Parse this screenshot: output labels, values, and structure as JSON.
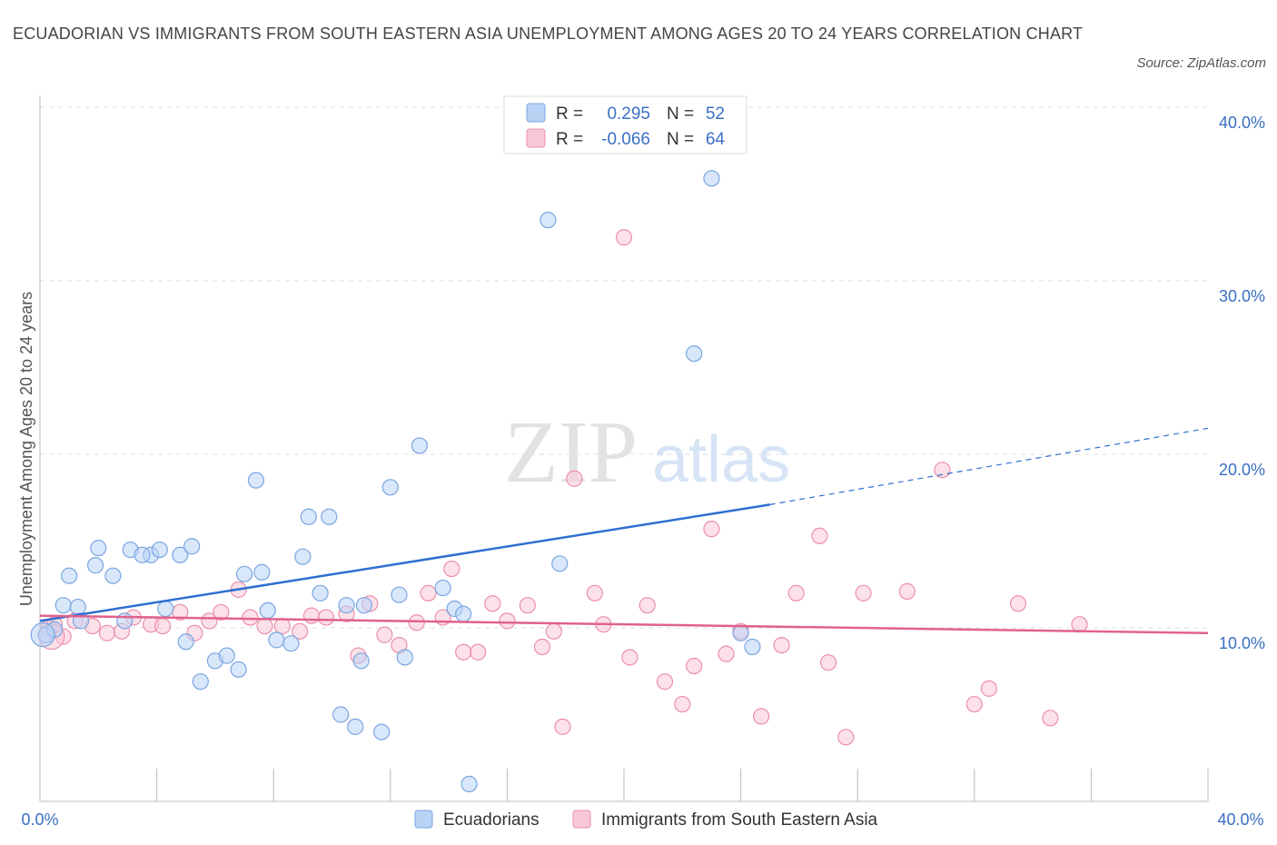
{
  "title": "ECUADORIAN VS IMMIGRANTS FROM SOUTH EASTERN ASIA UNEMPLOYMENT AMONG AGES 20 TO 24 YEARS CORRELATION CHART",
  "source": "Source: ZipAtlas.com",
  "watermark": {
    "zip": "ZIP",
    "atlas": "atlas"
  },
  "legend_top": {
    "rows": [
      {
        "r_label": "R =",
        "r_value": "0.295",
        "n_label": "N =",
        "n_value": "52"
      },
      {
        "r_label": "R =",
        "r_value": "-0.066",
        "n_label": "N =",
        "n_value": "64"
      }
    ]
  },
  "legend_bottom": [
    "Ecuadorians",
    "Immigrants from South Eastern Asia"
  ],
  "colors": {
    "blue_fill": "#b9d3f5",
    "blue_stroke": "#7aa6e0",
    "blue_line": "#2f6fd0",
    "pink_fill": "#f9c8d6",
    "pink_stroke": "#eb8fab",
    "pink_line": "#e0628c",
    "tick": "#3a6fc4",
    "grid": "#dddddd"
  },
  "chart_data": {
    "type": "scatter",
    "title": "ECUADORIAN VS IMMIGRANTS FROM SOUTH EASTERN ASIA UNEMPLOYMENT AMONG AGES 20 TO 24 YEARS CORRELATION CHART",
    "xlabel": "",
    "ylabel": "Unemployment Among Ages 20 to 24 years",
    "xlim": [
      0,
      40
    ],
    "ylim": [
      0,
      40
    ],
    "x_tick_labels": [
      "0.0%",
      "40.0%"
    ],
    "y_ticks": [
      10,
      20,
      30,
      40
    ],
    "y_tick_labels": [
      "10.0%",
      "20.0%",
      "30.0%",
      "40.0%"
    ],
    "grid": true,
    "legend_position": "top-center",
    "series": [
      {
        "name": "Ecuadorians",
        "R": 0.295,
        "N": 52,
        "trend": {
          "x0": 0,
          "y0": 10.4,
          "x1": 25,
          "y1": 17.1,
          "dashed_to_x": 40,
          "dashed_to_y": 21.5
        },
        "points": [
          [
            0.2,
            9.6
          ],
          [
            0.5,
            9.9
          ],
          [
            0.8,
            11.3
          ],
          [
            1.3,
            11.2
          ],
          [
            1.0,
            13.0
          ],
          [
            1.4,
            10.4
          ],
          [
            2.0,
            14.6
          ],
          [
            1.9,
            13.6
          ],
          [
            2.5,
            13.0
          ],
          [
            3.1,
            14.5
          ],
          [
            3.8,
            14.2
          ],
          [
            3.5,
            14.2
          ],
          [
            4.1,
            14.5
          ],
          [
            4.8,
            14.2
          ],
          [
            5.2,
            14.7
          ],
          [
            4.3,
            11.1
          ],
          [
            2.9,
            10.4
          ],
          [
            5.0,
            9.2
          ],
          [
            5.5,
            6.9
          ],
          [
            6.0,
            8.1
          ],
          [
            6.4,
            8.4
          ],
          [
            6.8,
            7.6
          ],
          [
            7.0,
            13.1
          ],
          [
            7.4,
            18.5
          ],
          [
            7.6,
            13.2
          ],
          [
            7.8,
            11.0
          ],
          [
            8.1,
            9.3
          ],
          [
            8.6,
            9.1
          ],
          [
            9.0,
            14.1
          ],
          [
            9.2,
            16.4
          ],
          [
            9.6,
            12.0
          ],
          [
            9.9,
            16.4
          ],
          [
            10.3,
            5.0
          ],
          [
            10.8,
            4.3
          ],
          [
            10.5,
            11.3
          ],
          [
            11.1,
            11.3
          ],
          [
            11.0,
            8.1
          ],
          [
            12.0,
            18.1
          ],
          [
            11.7,
            4.0
          ],
          [
            12.3,
            11.9
          ],
          [
            12.5,
            8.3
          ],
          [
            13.0,
            20.5
          ],
          [
            13.8,
            12.3
          ],
          [
            14.2,
            11.1
          ],
          [
            14.5,
            10.8
          ],
          [
            14.7,
            1.0
          ],
          [
            17.4,
            33.5
          ],
          [
            17.8,
            13.7
          ],
          [
            22.4,
            25.8
          ],
          [
            23.0,
            35.9
          ],
          [
            24.0,
            9.7
          ],
          [
            24.4,
            8.9
          ]
        ]
      },
      {
        "name": "Immigrants from South Eastern Asia",
        "R": -0.066,
        "N": 64,
        "trend": {
          "x0": 0,
          "y0": 10.7,
          "x1": 40,
          "y1": 9.7
        },
        "points": [
          [
            0.3,
            10.0
          ],
          [
            0.5,
            10.2
          ],
          [
            0.8,
            9.5
          ],
          [
            1.2,
            10.4
          ],
          [
            1.8,
            10.1
          ],
          [
            2.3,
            9.7
          ],
          [
            2.8,
            9.8
          ],
          [
            3.2,
            10.6
          ],
          [
            3.8,
            10.2
          ],
          [
            4.2,
            10.1
          ],
          [
            4.8,
            10.9
          ],
          [
            5.3,
            9.7
          ],
          [
            5.8,
            10.4
          ],
          [
            6.2,
            10.9
          ],
          [
            6.8,
            12.2
          ],
          [
            7.2,
            10.6
          ],
          [
            7.7,
            10.1
          ],
          [
            8.3,
            10.1
          ],
          [
            8.9,
            9.8
          ],
          [
            9.3,
            10.7
          ],
          [
            9.8,
            10.6
          ],
          [
            10.5,
            10.8
          ],
          [
            10.9,
            8.4
          ],
          [
            11.3,
            11.4
          ],
          [
            11.8,
            9.6
          ],
          [
            12.3,
            9.0
          ],
          [
            12.9,
            10.3
          ],
          [
            13.3,
            12.0
          ],
          [
            13.8,
            10.6
          ],
          [
            14.1,
            13.4
          ],
          [
            14.5,
            8.6
          ],
          [
            15.0,
            8.6
          ],
          [
            15.5,
            11.4
          ],
          [
            16.0,
            10.4
          ],
          [
            16.7,
            11.3
          ],
          [
            17.2,
            8.9
          ],
          [
            17.6,
            9.8
          ],
          [
            17.9,
            4.3
          ],
          [
            18.3,
            18.6
          ],
          [
            19.0,
            12.0
          ],
          [
            19.3,
            10.2
          ],
          [
            20.0,
            32.5
          ],
          [
            20.2,
            8.3
          ],
          [
            20.8,
            11.3
          ],
          [
            21.4,
            6.9
          ],
          [
            22.0,
            5.6
          ],
          [
            22.4,
            7.8
          ],
          [
            23.0,
            15.7
          ],
          [
            23.5,
            8.5
          ],
          [
            24.0,
            9.8
          ],
          [
            24.7,
            4.9
          ],
          [
            25.4,
            9.0
          ],
          [
            25.9,
            12.0
          ],
          [
            26.7,
            15.3
          ],
          [
            27.0,
            8.0
          ],
          [
            27.6,
            3.7
          ],
          [
            28.2,
            12.0
          ],
          [
            29.7,
            12.1
          ],
          [
            30.9,
            19.1
          ],
          [
            32.0,
            5.6
          ],
          [
            32.5,
            6.5
          ],
          [
            33.5,
            11.4
          ],
          [
            34.6,
            4.8
          ],
          [
            35.6,
            10.2
          ]
        ]
      }
    ]
  }
}
